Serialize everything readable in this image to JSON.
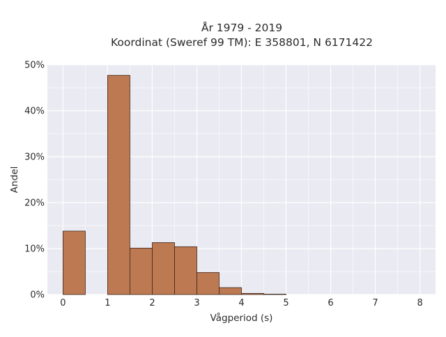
{
  "chart_data": {
    "type": "bar",
    "title": "År 1979 - 2019",
    "subtitle": "Koordinat (Sweref 99 TM): E 358801, N 6171422",
    "xlabel": "Vågperiod (s)",
    "ylabel": "Andel",
    "xlim": [
      -0.35,
      8.35
    ],
    "ylim": [
      0,
      50
    ],
    "x_ticks": [
      0,
      1,
      2,
      3,
      4,
      5,
      6,
      7,
      8
    ],
    "x_tick_labels": [
      "0",
      "1",
      "2",
      "3",
      "4",
      "5",
      "6",
      "7",
      "8"
    ],
    "y_ticks": [
      0,
      10,
      20,
      30,
      40,
      50
    ],
    "y_tick_labels": [
      "0%",
      "10%",
      "20%",
      "30%",
      "40%",
      "50%"
    ],
    "bin_width": 0.5,
    "bins": [
      {
        "start": 0.0,
        "value": 13.8
      },
      {
        "start": 1.0,
        "value": 47.7
      },
      {
        "start": 1.5,
        "value": 10.1
      },
      {
        "start": 2.0,
        "value": 11.3
      },
      {
        "start": 2.5,
        "value": 10.4
      },
      {
        "start": 3.0,
        "value": 4.8
      },
      {
        "start": 3.5,
        "value": 1.5
      },
      {
        "start": 4.0,
        "value": 0.25
      },
      {
        "start": 4.5,
        "value": 0.08
      }
    ],
    "grid": true,
    "legend": "none",
    "colors": {
      "bar": "#bd7a52",
      "bar_edge": "#3b2316",
      "plot_background": "#eaeaf2",
      "grid": "#ffffff"
    }
  }
}
